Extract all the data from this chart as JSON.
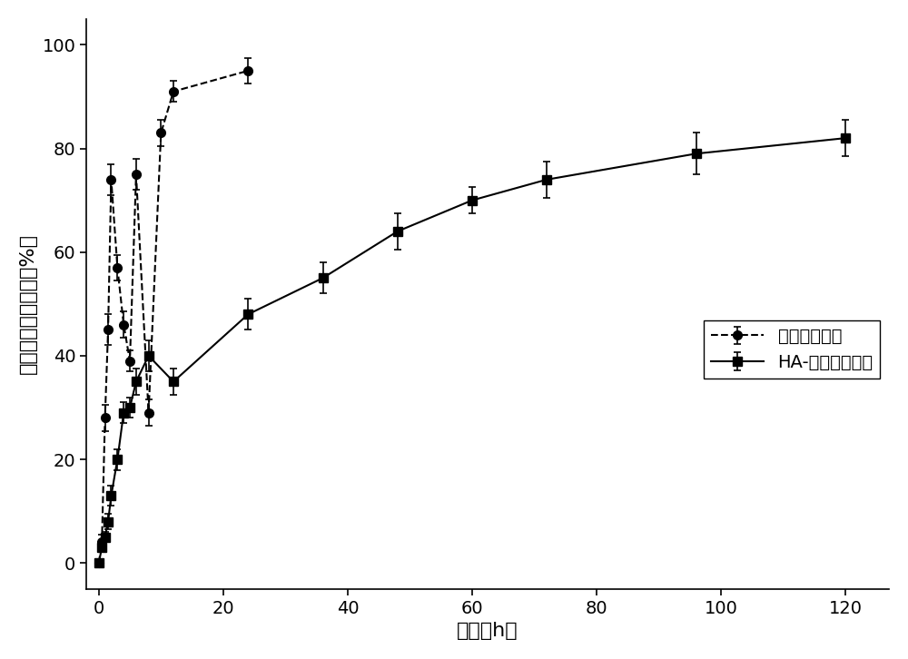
{
  "series1_label": "阿霉素原药组",
  "series2_label": "HA-阿霉素微粒组",
  "series1_x": [
    0,
    0.5,
    1,
    1.5,
    2,
    3,
    4,
    5,
    6,
    8,
    10,
    12,
    24
  ],
  "series1_y": [
    0,
    4,
    28,
    45,
    74,
    57,
    46,
    39,
    75,
    29,
    83,
    91,
    95
  ],
  "series1_yerr": [
    0.5,
    1.5,
    2.5,
    3,
    3,
    2.5,
    2.5,
    2,
    3,
    2.5,
    2.5,
    2,
    2.5
  ],
  "series2_x": [
    0,
    0.5,
    1,
    1.5,
    2,
    3,
    4,
    5,
    6,
    8,
    12,
    24,
    36,
    48,
    60,
    72,
    96,
    120
  ],
  "series2_y": [
    0,
    3,
    5,
    8,
    13,
    20,
    29,
    30,
    35,
    40,
    35,
    48,
    55,
    64,
    70,
    74,
    79,
    82
  ],
  "series2_yerr": [
    0.5,
    0.8,
    1,
    1.5,
    2,
    2,
    2,
    2,
    2.5,
    3,
    2.5,
    3,
    3,
    3.5,
    2.5,
    3.5,
    4,
    3.5
  ],
  "xlabel": "时间（h）",
  "ylabel": "阿霊素累积释放量（%）",
  "xlim": [
    -2,
    127
  ],
  "ylim": [
    -5,
    105
  ],
  "xticks": [
    0,
    20,
    40,
    60,
    80,
    100,
    120
  ],
  "yticks": [
    0,
    20,
    40,
    60,
    80,
    100
  ],
  "background_color": "#ffffff",
  "line_color": "#000000",
  "marker_size": 7,
  "linewidth": 1.5,
  "capsize": 3,
  "legend_fontsize": 14,
  "axis_fontsize": 16,
  "tick_fontsize": 14
}
